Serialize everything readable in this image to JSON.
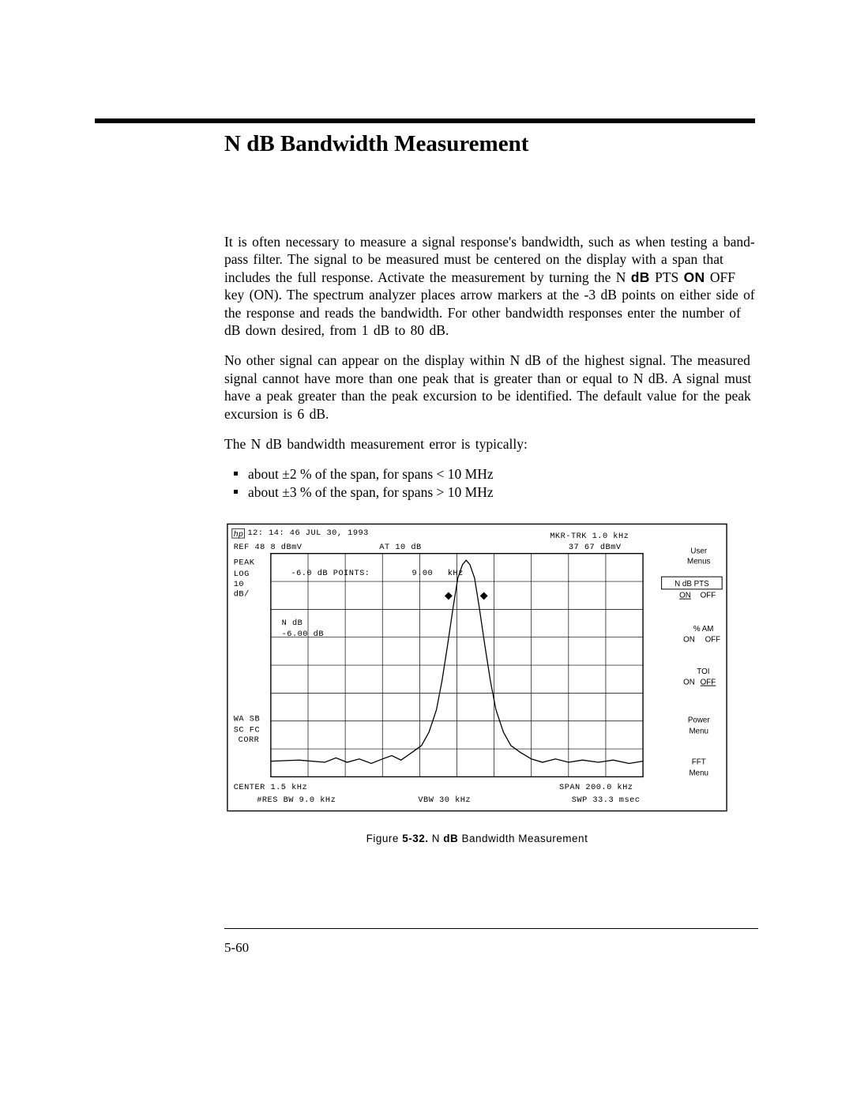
{
  "title": "N dB Bandwidth Measurement",
  "paragraphs": {
    "p1a": "It is often necessary to measure a signal response's bandwidth, such as when testing a band-pass filter. The signal to be measured must be centered on the display with a span that includes the full response. Activate the measurement by turning the N ",
    "p1_kbd1": "dB",
    "p1b": " PTS ",
    "p1_kbd2": "ON",
    "p1c": " OFF key (ON). The spectrum analyzer places arrow markers at the -3 dB points on either side of the response and reads the bandwidth. For other bandwidth responses enter the number of dB down desired, from 1 dB to 80 dB.",
    "p2": "No other signal can appear on the display within N dB of the highest signal. The measured signal cannot have more than one peak that is greater than or equal to N dB. A signal must have a peak greater than the peak excursion to be identified. The default value for the peak excursion is 6 dB.",
    "p3": "The N dB bandwidth measurement error is typically:"
  },
  "bullets": [
    "about ±2 % of the span, for spans < 10 MHz",
    "about ±3 % of the span, for spans > 10 MHz"
  ],
  "figure": {
    "timestamp": "12: 14: 46 JUL 30,   1993",
    "ref": "REF 48 8 dBmV",
    "atten": "AT 10 dB",
    "marker_track": "MKR-TRK 1.0 kHz",
    "marker_val": "37 67 dBmV",
    "left_labels": [
      "PEAK",
      "LOG",
      "10",
      "dB/"
    ],
    "points_label": "-6.0 dB POINTS:",
    "points_val": "9.00",
    "points_unit": "kHz",
    "ndb_lbl": "N dB",
    "ndb_val": "-6.00 dB",
    "left_low": [
      "WA SB",
      "SC FC",
      "CORR"
    ],
    "center": "CENTER 1.5 kHz",
    "resbw": "#RES BW 9.0 kHz",
    "vbw": "VBW 30 kHz",
    "span": "SPAN 200.0 kHz",
    "swp": "SWP 33.3 msec",
    "menus": [
      "User\nMenus",
      "N dB PTS\nON OFF",
      "% AM\nON OFF",
      "TOI\nON OFF",
      "Power\nMenu",
      "FFT\nMenu"
    ],
    "peak_curve": {
      "type": "line",
      "color": "#000000",
      "linewidth": 1.2,
      "xlim": [
        0,
        400
      ],
      "ylim": [
        0,
        200
      ],
      "points": [
        [
          0,
          186
        ],
        [
          30,
          185
        ],
        [
          58,
          187
        ],
        [
          70,
          183
        ],
        [
          82,
          187
        ],
        [
          95,
          184
        ],
        [
          108,
          188
        ],
        [
          120,
          184
        ],
        [
          130,
          181
        ],
        [
          140,
          185
        ],
        [
          152,
          178
        ],
        [
          162,
          172
        ],
        [
          170,
          160
        ],
        [
          178,
          140
        ],
        [
          184,
          114
        ],
        [
          190,
          82
        ],
        [
          196,
          48
        ],
        [
          201,
          22
        ],
        [
          206,
          10
        ],
        [
          210,
          6
        ],
        [
          214,
          10
        ],
        [
          219,
          22
        ],
        [
          224,
          48
        ],
        [
          230,
          82
        ],
        [
          236,
          114
        ],
        [
          242,
          140
        ],
        [
          250,
          160
        ],
        [
          258,
          172
        ],
        [
          268,
          178
        ],
        [
          280,
          184
        ],
        [
          292,
          187
        ],
        [
          306,
          184
        ],
        [
          320,
          187
        ],
        [
          335,
          185
        ],
        [
          352,
          187
        ],
        [
          368,
          185
        ],
        [
          385,
          188
        ],
        [
          400,
          186
        ]
      ],
      "markers": {
        "left": [
          191,
          38
        ],
        "right": [
          229,
          38
        ],
        "symbol": "diamond",
        "size": 5
      }
    },
    "grid": {
      "cols": 10,
      "rows": 8,
      "color": "#000000"
    },
    "caption_pre": "Figure ",
    "caption_num": "5-32.",
    "caption_mid": " N ",
    "caption_bold": "dB",
    "caption_post": " Bandwidth Measurement"
  },
  "page_number": "5-60"
}
